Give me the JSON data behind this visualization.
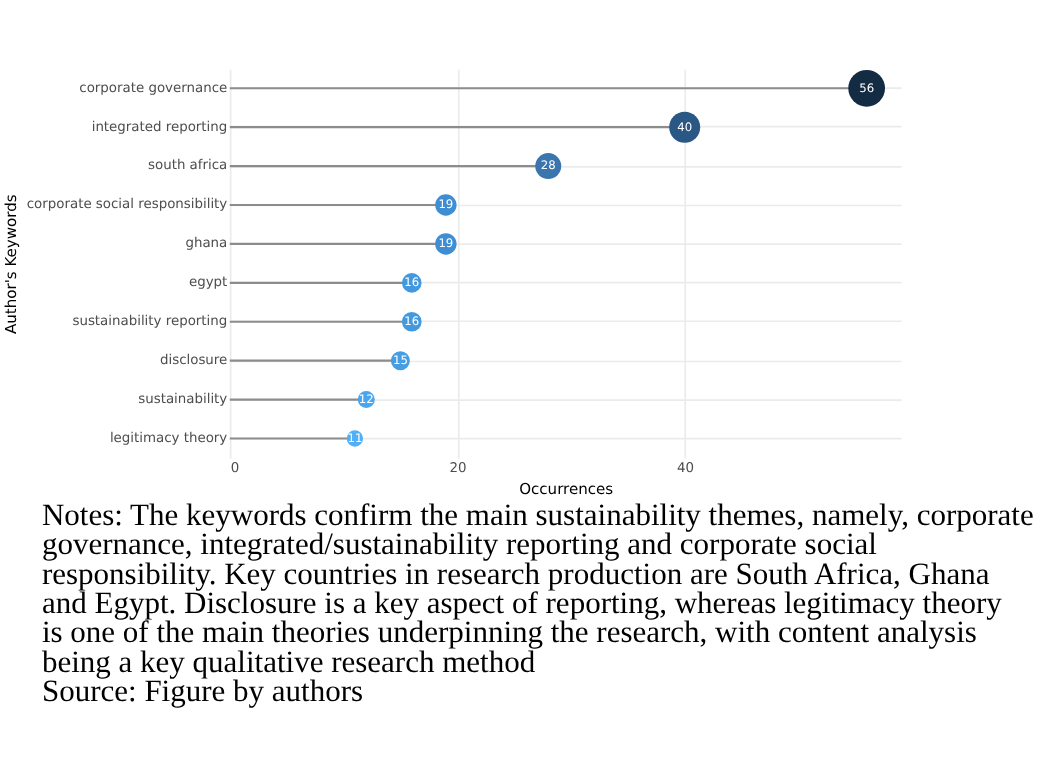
{
  "chart_data": {
    "type": "lollipop",
    "xlabel": "Occurrences",
    "ylabel": "Author's Keywords",
    "orientation": "horizontal",
    "categories": [
      "corporate governance",
      "integrated reporting",
      "south africa",
      "corporate social responsibility",
      "ghana",
      "egypt",
      "sustainability reporting",
      "disclosure",
      "sustainability",
      "legitimacy theory"
    ],
    "values": [
      56,
      40,
      28,
      19,
      19,
      16,
      16,
      15,
      12,
      11
    ],
    "colors": [
      "#132b43",
      "#2a5783",
      "#3a75ad",
      "#3f8ed4",
      "#3f8ed4",
      "#4399df",
      "#4399df",
      "#459de4",
      "#4aa6ef",
      "#50aff6"
    ],
    "sizes": [
      1,
      0.714,
      0.5,
      0.339,
      0.339,
      0.286,
      0.286,
      0.268,
      0.214,
      0.196
    ],
    "xlim": [
      0,
      59
    ],
    "xticks": [
      0,
      20,
      40
    ],
    "grid": true,
    "data_labels": true,
    "annotations": [
      "Notes: The keywords confirm the main sustainability themes, namely, corporate governance, integrated/sustainability reporting and corporate social responsibility. Key countries in research production are South Africa, Ghana and Egypt. Disclosure is a key aspect of reporting, whereas legitimacy theory is one of the main theories underpinning the research, with content analysis being a key qualitative research method",
      "Source: Figure by authors"
    ]
  }
}
